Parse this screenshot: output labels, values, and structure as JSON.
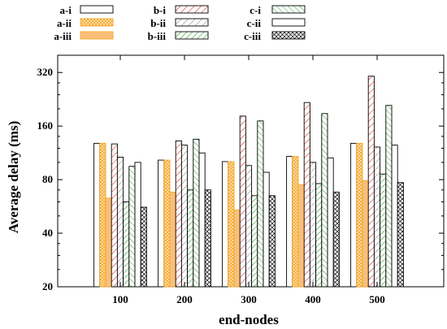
{
  "chart_data": {
    "type": "bar",
    "title": "",
    "xlabel": "end-nodes",
    "ylabel": "Average delay (ms)",
    "yscale": "log2",
    "ylim": [
      20,
      400
    ],
    "yticks": [
      20,
      40,
      80,
      160,
      320
    ],
    "grid": false,
    "legend_position": "top",
    "categories": [
      "100",
      "200",
      "300",
      "400",
      "500"
    ],
    "series": [
      {
        "name": "a-i",
        "pattern": "plain",
        "color": "#000000",
        "values": [
          128,
          103,
          101,
          108,
          128
        ]
      },
      {
        "name": "a-ii",
        "pattern": "crosshatch",
        "color": "#f5a623",
        "values": [
          128,
          103,
          101,
          108,
          128
        ]
      },
      {
        "name": "a-iii",
        "pattern": "solid",
        "color": "#f9bf7a",
        "values": [
          63,
          68,
          54,
          75,
          79
        ]
      },
      {
        "name": "b-i",
        "pattern": "diagonal",
        "color": "#e0302a",
        "values": [
          127,
          132,
          182,
          217,
          305
        ]
      },
      {
        "name": "b-ii",
        "pattern": "diagonal",
        "color": "#000000",
        "values": [
          107,
          125,
          96,
          100,
          122
        ]
      },
      {
        "name": "b-iii",
        "pattern": "diagonal",
        "color": "#2aa02a",
        "values": [
          60,
          70,
          65,
          76,
          86
        ]
      },
      {
        "name": "c-i",
        "pattern": "diagonal",
        "color": "#2aa02a",
        "values": [
          95,
          135,
          171,
          188,
          209
        ]
      },
      {
        "name": "c-ii",
        "pattern": "plain",
        "color": "#000000",
        "values": [
          100,
          113,
          88,
          106,
          125
        ]
      },
      {
        "name": "c-iii",
        "pattern": "crosshatch",
        "color": "#000000",
        "values": [
          56,
          70,
          65,
          68,
          77
        ]
      }
    ]
  }
}
